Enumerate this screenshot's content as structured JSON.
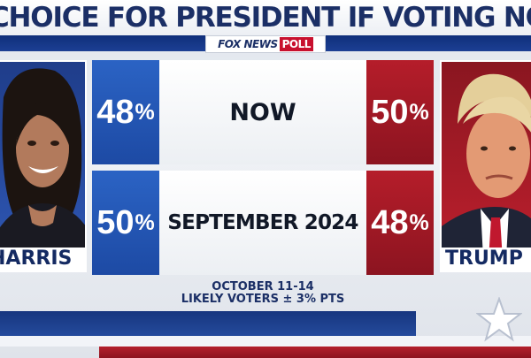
{
  "title": "CHOICE FOR PRESIDENT IF VOTING NOW",
  "source": {
    "logo": "FOX NEWS",
    "poll_label": "POLL"
  },
  "candidates": {
    "left": {
      "name": "HARRIS",
      "party_color": "#1d4aa4"
    },
    "right": {
      "name": "TRUMP",
      "party_color": "#b51d2a"
    }
  },
  "chart_data": {
    "type": "table",
    "title": "CHOICE FOR PRESIDENT IF VOTING NOW",
    "columns": [
      "HARRIS",
      "TRUMP"
    ],
    "rows": [
      {
        "label": "NOW",
        "values": [
          48,
          50
        ]
      },
      {
        "label": "SEPTEMBER 2024",
        "values": [
          50,
          48
        ]
      }
    ],
    "unit": "%"
  },
  "footnote": {
    "dates": "OCTOBER 11-14",
    "sample": "LIKELY VOTERS ± 3% PTS"
  },
  "colors": {
    "dem": "#1d4aa4",
    "rep": "#b51d2a",
    "title": "#1b2f66"
  },
  "icons": {
    "watermark": "star-icon"
  }
}
